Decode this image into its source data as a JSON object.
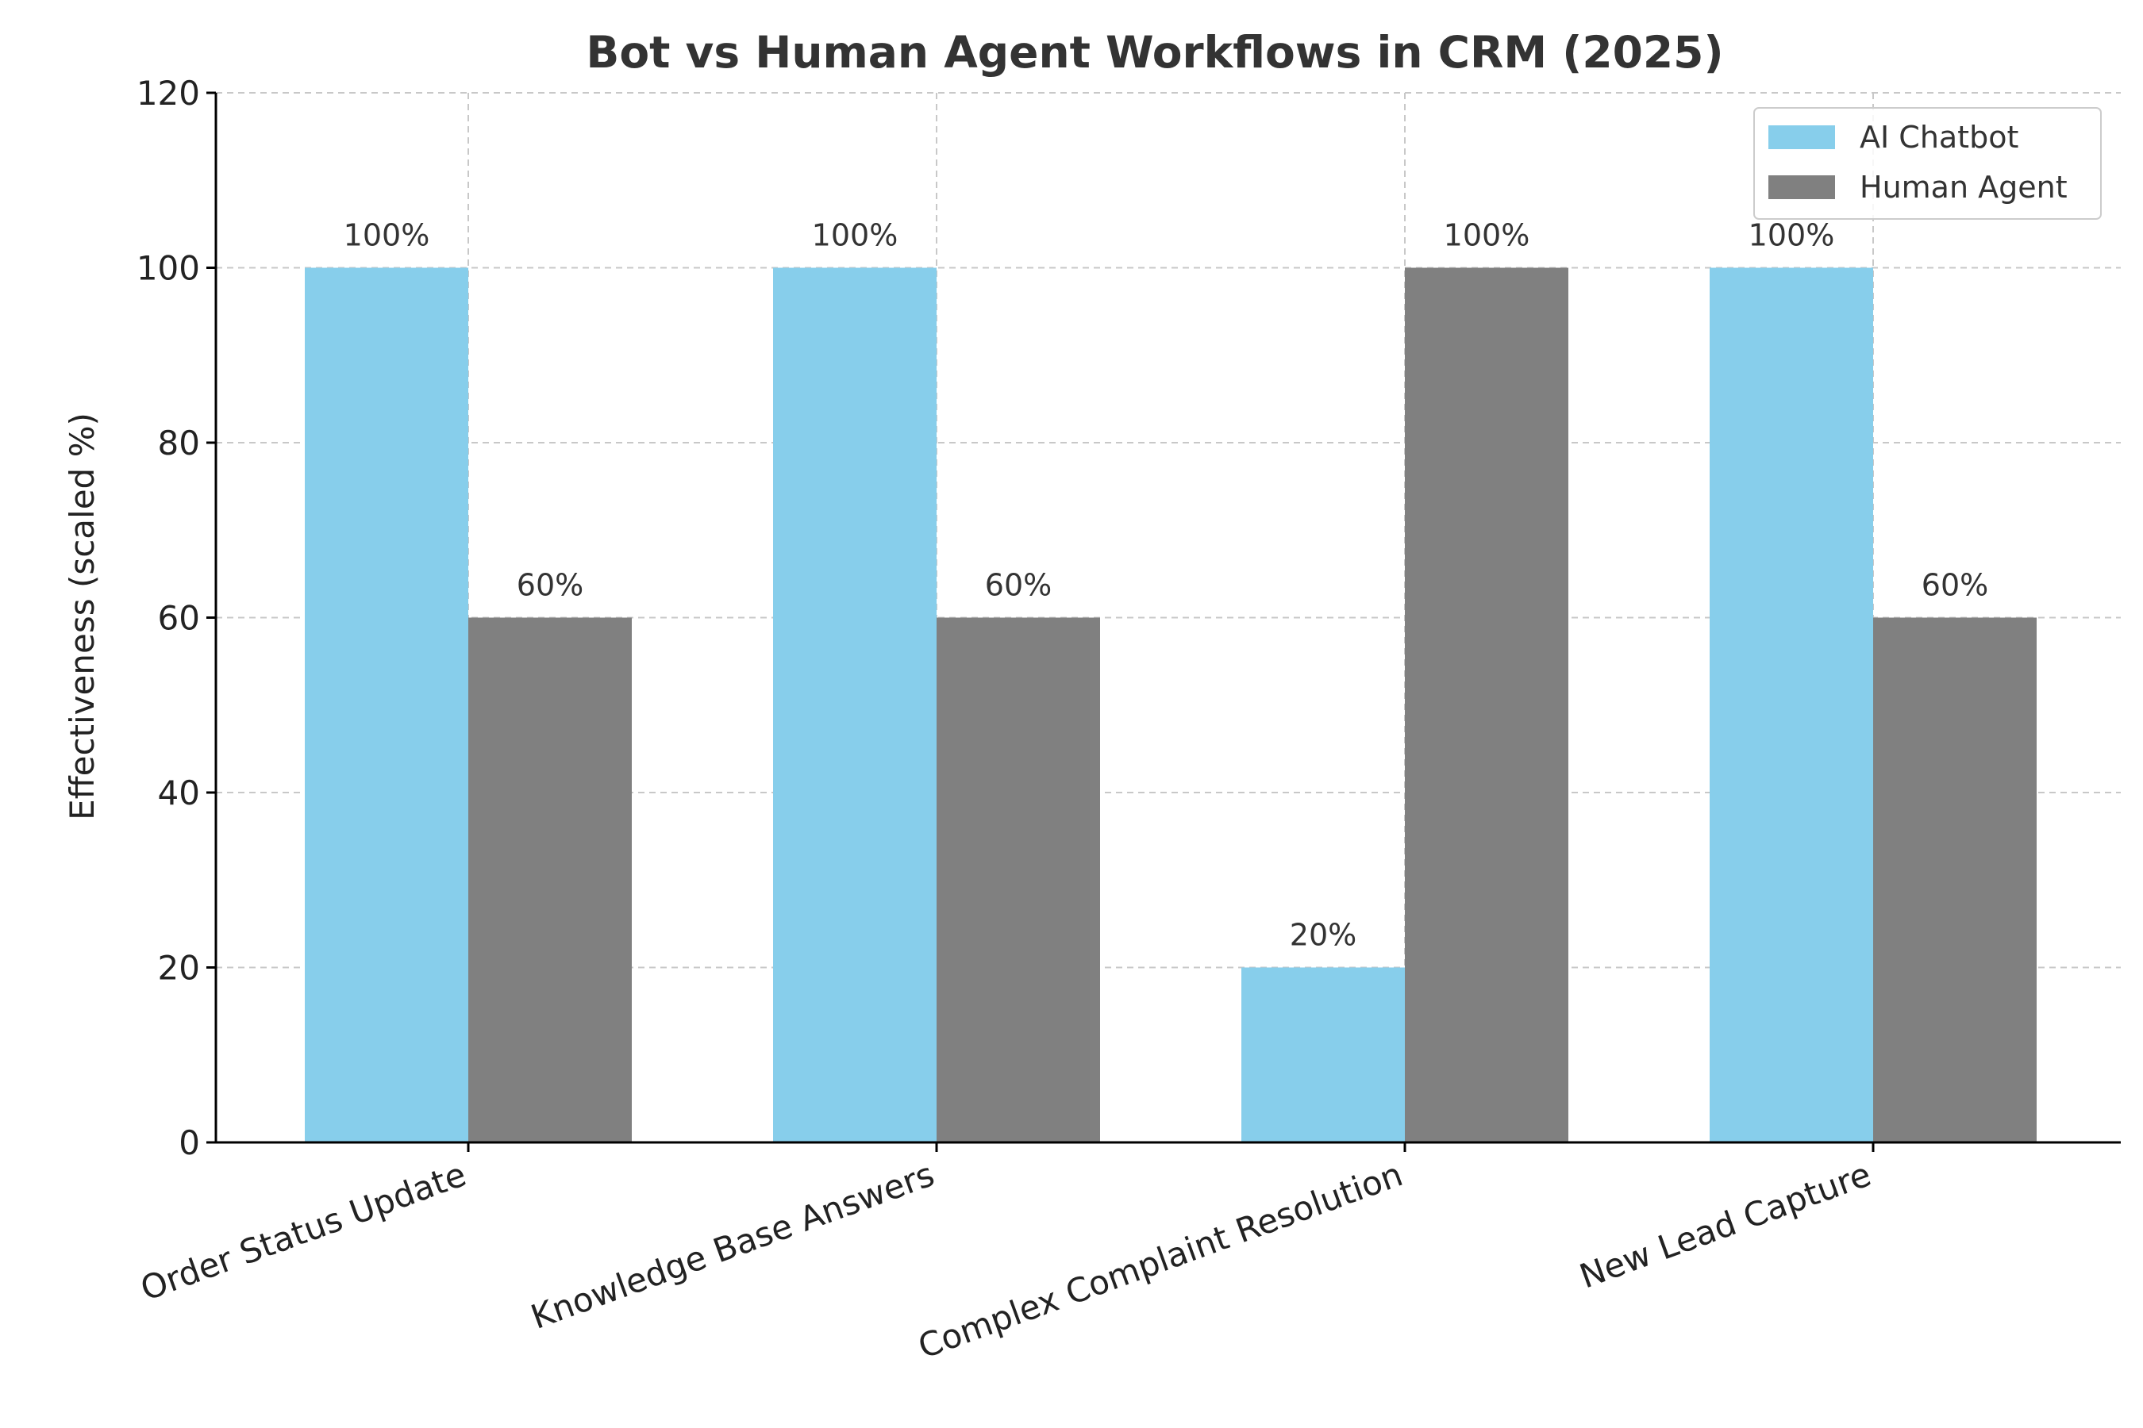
{
  "chart_data": {
    "type": "bar",
    "title": "Bot vs Human Agent Workflows in CRM (2025)",
    "xlabel": "",
    "ylabel": "Effectiveness (scaled %)",
    "ylim": [
      0,
      120
    ],
    "yticks": [
      0,
      20,
      40,
      60,
      80,
      100,
      120
    ],
    "categories": [
      "Order Status Update",
      "Knowledge Base Answers",
      "Complex Complaint Resolution",
      "New Lead Capture"
    ],
    "series": [
      {
        "name": "AI Chatbot",
        "color": "#87CEEB",
        "values": [
          100,
          100,
          20,
          100
        ],
        "labels": [
          "100%",
          "100%",
          "20%",
          "100%"
        ]
      },
      {
        "name": "Human Agent",
        "color": "#808080",
        "values": [
          60,
          60,
          100,
          60
        ],
        "labels": [
          "60%",
          "60%",
          "100%",
          "60%"
        ]
      }
    ],
    "grid": true,
    "legend_position": "top-right"
  }
}
